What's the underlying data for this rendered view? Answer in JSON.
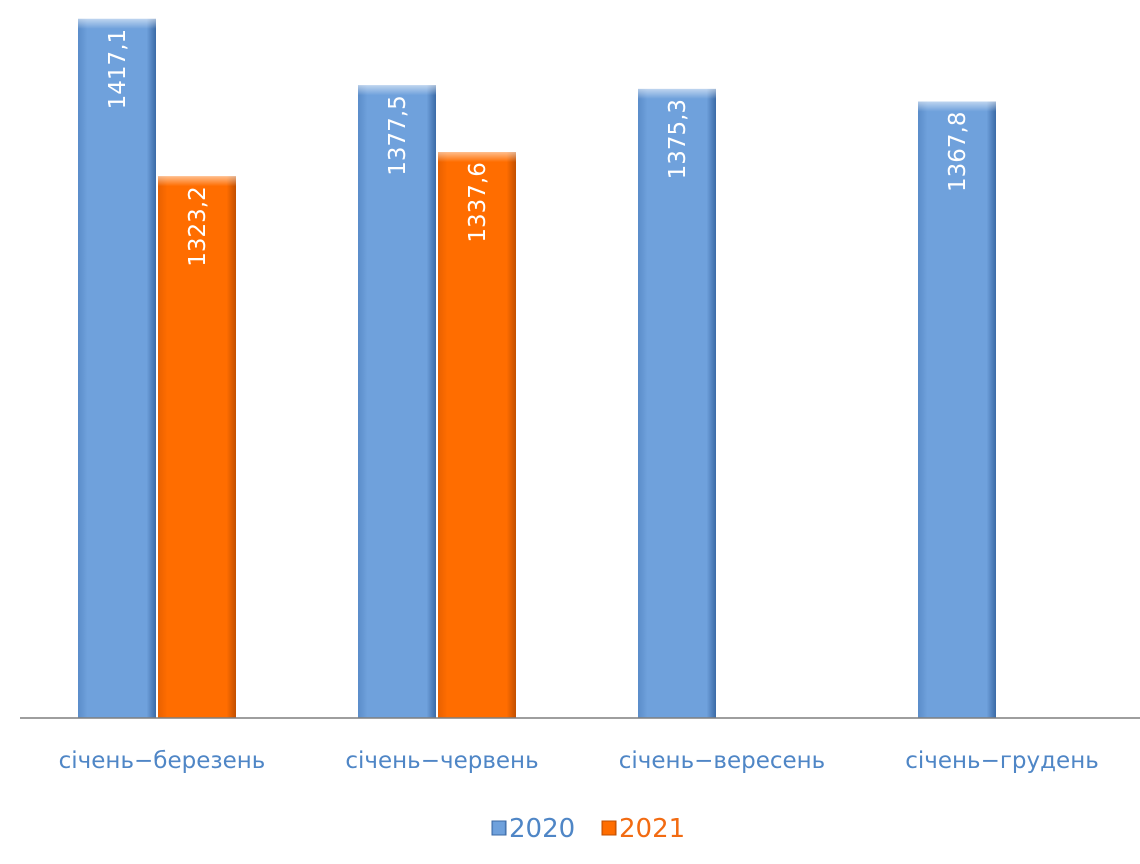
{
  "chart_data": {
    "type": "bar",
    "categories": [
      "січень−березень",
      "січень−червень",
      "січень−вересень",
      "січень−грудень"
    ],
    "series": [
      {
        "name": "2020",
        "values": [
          1417.1,
          1377.5,
          1375.3,
          1367.8
        ],
        "labels": [
          "1417,1",
          "1377,5",
          "1375,3",
          "1367,8"
        ],
        "color": "#6fa1dc"
      },
      {
        "name": "2021",
        "values": [
          1323.2,
          1337.6,
          null,
          null
        ],
        "labels": [
          "1323,2",
          "1337,6",
          "",
          ""
        ],
        "color": "#ff6d00"
      }
    ],
    "ylim": [
      1000,
      1420
    ],
    "grid": false,
    "legend_position": "bottom",
    "category_label_color": "#4f86c6",
    "legend_text_colors": {
      "2020": "#4f86c6",
      "2021": "#f26b12"
    }
  }
}
